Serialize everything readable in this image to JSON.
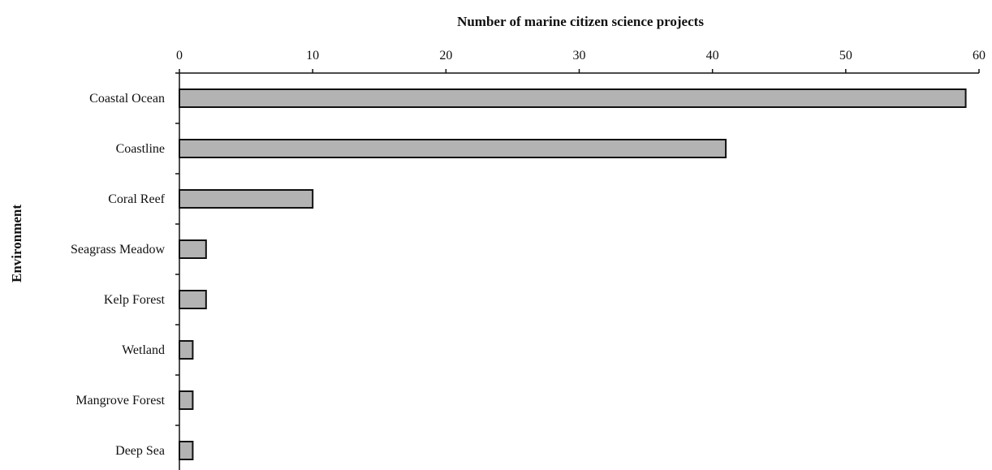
{
  "chart_data": {
    "type": "bar",
    "orientation": "horizontal",
    "title": "",
    "xlabel": "Number of marine citizen science projects",
    "ylabel": "Environment",
    "categories": [
      "Coastal Ocean",
      "Coastline",
      "Coral Reef",
      "Seagrass Meadow",
      "Kelp Forest",
      "Wetland",
      "Mangrove Forest",
      "Deep Sea"
    ],
    "values": [
      59,
      41,
      10,
      2,
      2,
      1,
      1,
      1
    ],
    "xlim": [
      0,
      60
    ],
    "x_ticks": [
      0,
      10,
      20,
      30,
      40,
      50,
      60
    ],
    "x_axis_position": "top",
    "grid": false,
    "legend": "none",
    "bar_color": "#b3b3b3"
  }
}
